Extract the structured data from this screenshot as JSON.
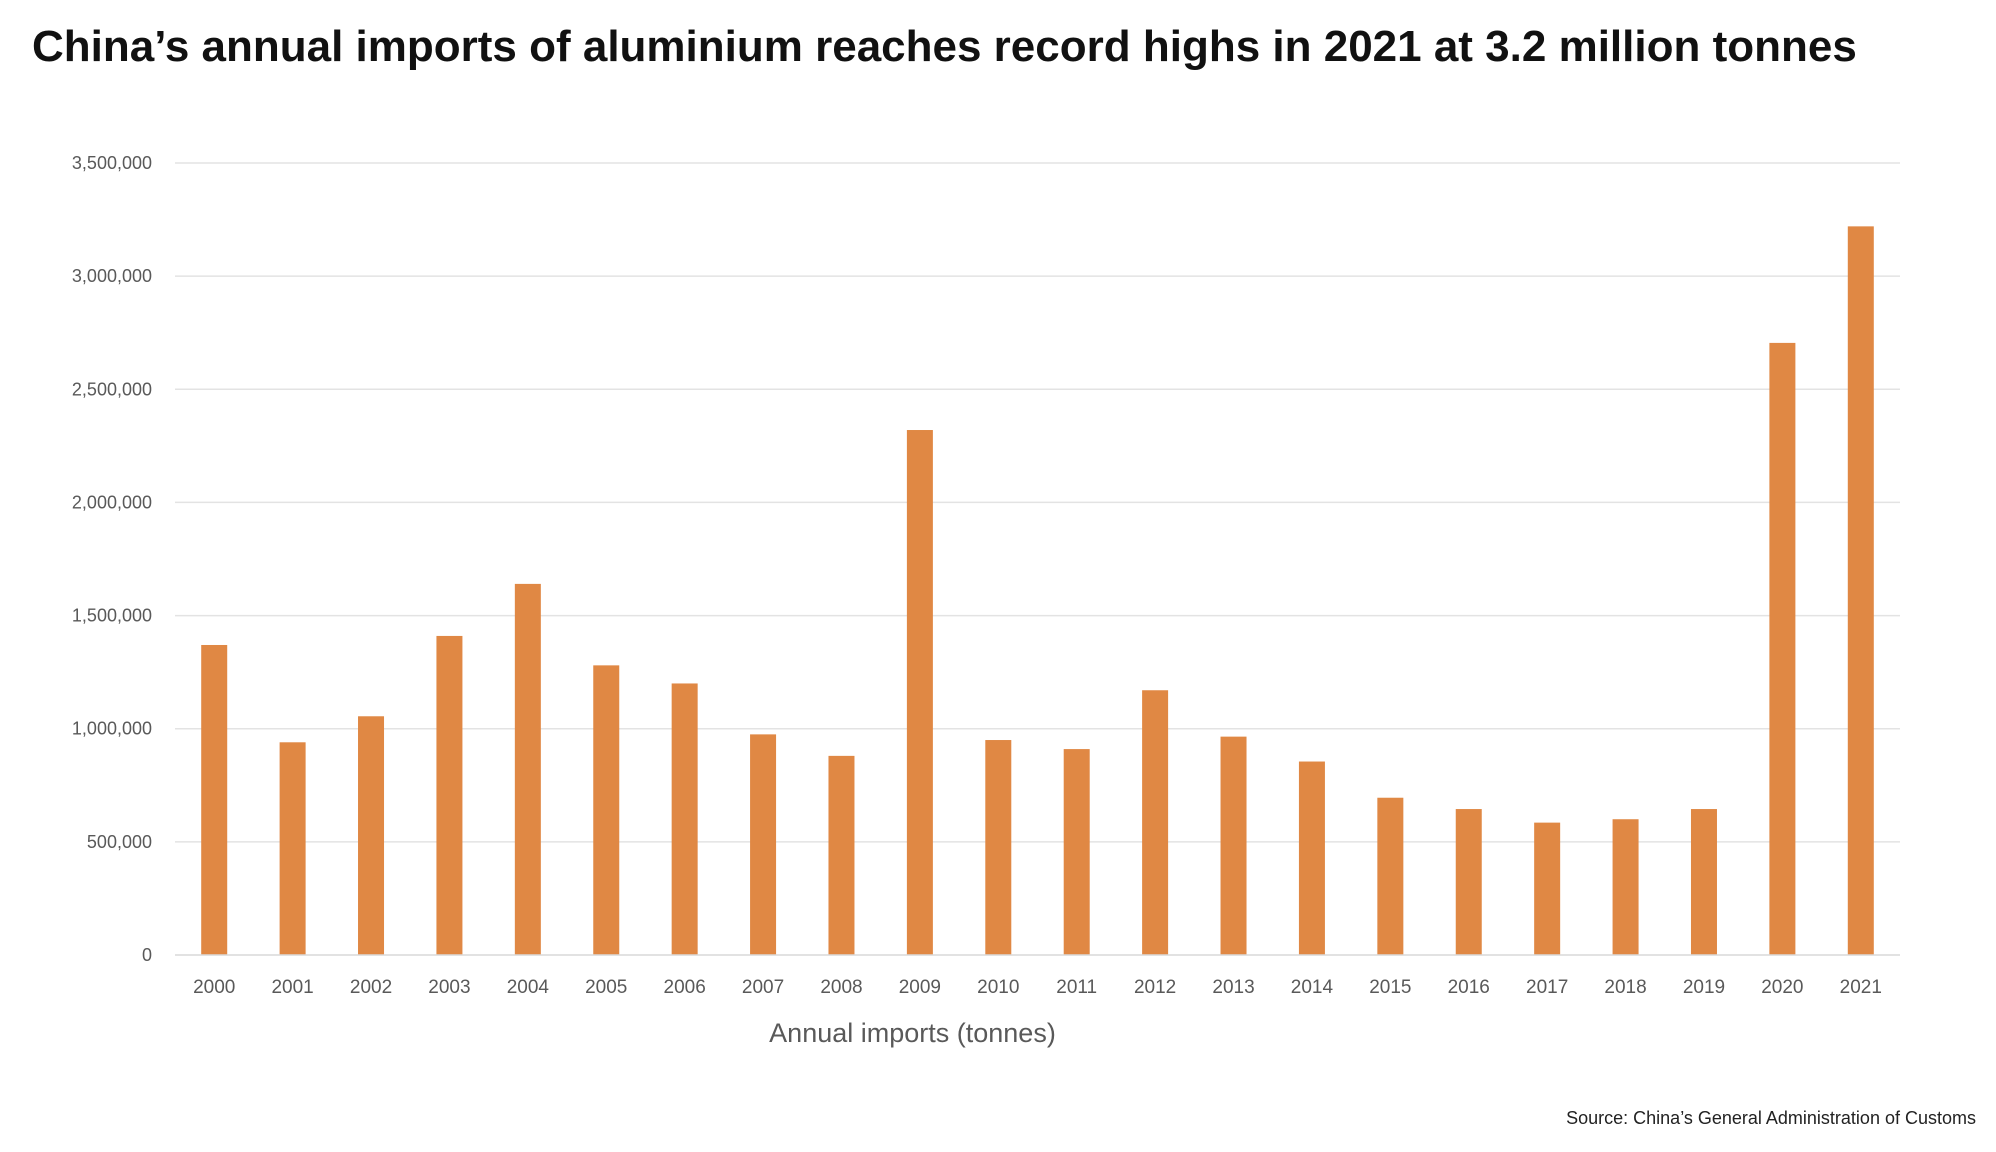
{
  "chart_data": {
    "type": "bar",
    "title": "China’s annual imports of aluminium reaches record highs in 2021 at 3.2 million tonnes",
    "xlabel": "Annual imports (tonnes)",
    "ylabel": "",
    "categories": [
      "2000",
      "2001",
      "2002",
      "2003",
      "2004",
      "2005",
      "2006",
      "2007",
      "2008",
      "2009",
      "2010",
      "2011",
      "2012",
      "2013",
      "2014",
      "2015",
      "2016",
      "2017",
      "2018",
      "2019",
      "2020",
      "2021"
    ],
    "values": [
      1370000,
      940000,
      1055000,
      1410000,
      1640000,
      1280000,
      1200000,
      975000,
      880000,
      2320000,
      950000,
      910000,
      1170000,
      965000,
      855000,
      695000,
      645000,
      585000,
      600000,
      645000,
      2705000,
      3220000
    ],
    "ylim": [
      0,
      3500000
    ],
    "yticks": [
      0,
      500000,
      1000000,
      1500000,
      2000000,
      2500000,
      3000000,
      3500000
    ],
    "ytick_labels": [
      "0",
      "500,000",
      "1,000,000",
      "1,500,000",
      "2,000,000",
      "2,500,000",
      "3,000,000",
      "3,500,000"
    ],
    "grid": true,
    "bar_color": "#E08844",
    "grid_color": "#E3E3E3",
    "axis_line_color": "#D9D9D9",
    "tick_label_color": "#595959",
    "source": "Source: China’s General Administration of Customs"
  }
}
